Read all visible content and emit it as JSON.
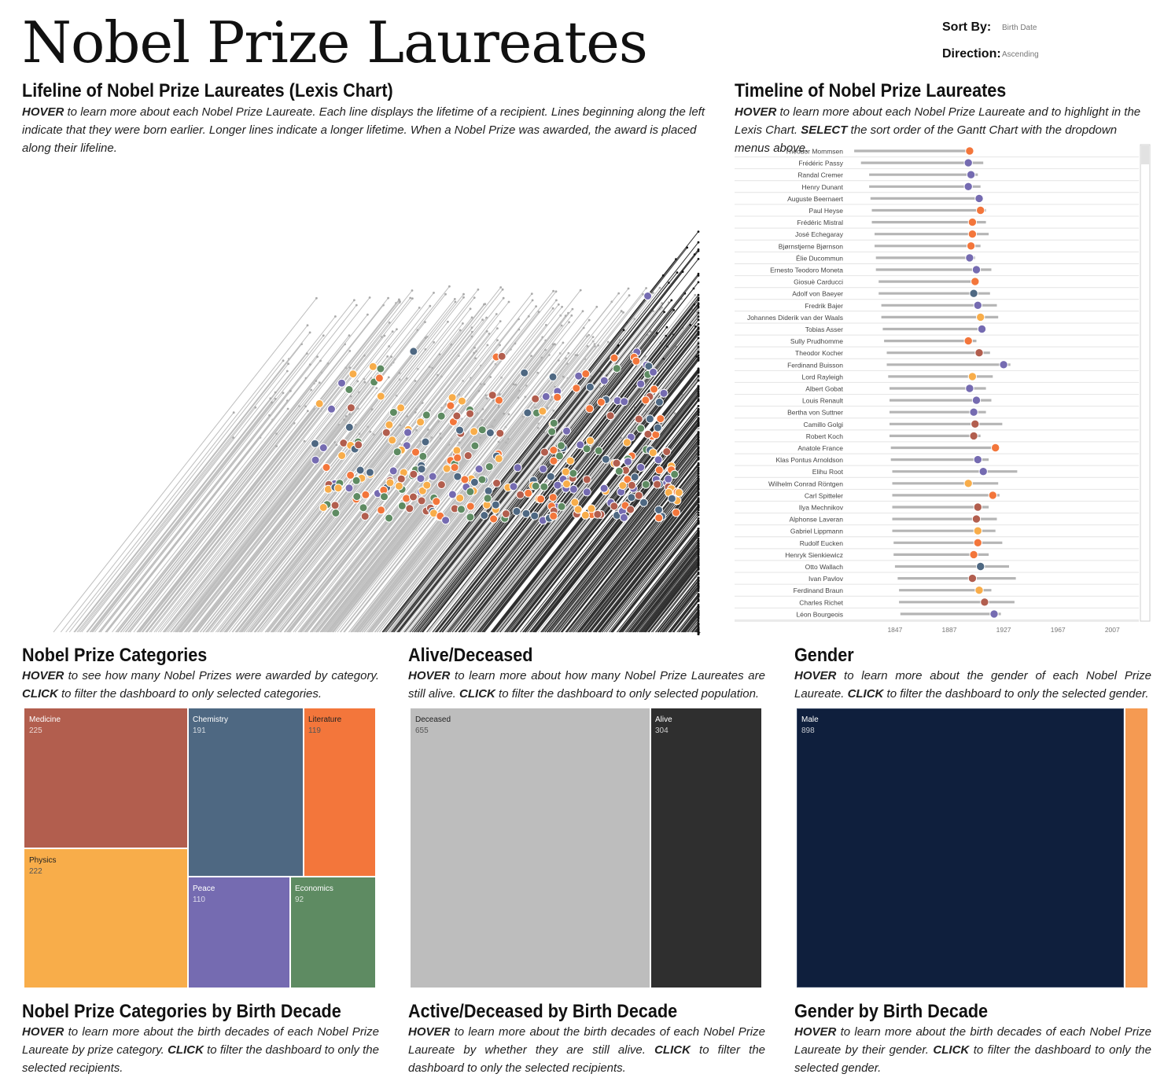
{
  "page": {
    "title": "Nobel Prize Laureates",
    "sort_by_label": "Sort By:",
    "sort_by_value": "Birth Date",
    "direction_label": "Direction:",
    "direction_value": "Ascending"
  },
  "colors": {
    "Medicine": "#b25e4e",
    "Chemistry": "#4e6882",
    "Literature": "#f3763b",
    "Physics": "#f8ad4a",
    "Peace": "#756bb1",
    "Economics": "#5e8b62",
    "deceased_line": "#bdbdbd",
    "alive_line": "#2f2f2f",
    "male": "#0f1f3d",
    "female": "#f59a52"
  },
  "sections": {
    "lexis": {
      "title": "Lifeline of Nobel Prize Laureates (Lexis Chart)",
      "hover": "HOVER",
      "desc": " to learn more about each Nobel Prize Laureate. Each line displays the lifetime of a recipient. Lines beginning along the left indicate that they were born earlier. Longer lines indicate a longer lifetime. When a Nobel Prize was awarded, the award is placed along their lifeline."
    },
    "timeline": {
      "title": "Timeline of Nobel Prize Laureates",
      "hover": "HOVER",
      "desc1": " to learn more about each Nobel Prize Laureate and to highlight in the Lexis Chart. ",
      "select": "SELECT",
      "desc2": " the sort order of the Gantt Chart with the dropdown menus above."
    },
    "categories": {
      "title": "Nobel Prize Categories",
      "hover": "HOVER",
      "desc1": " to see how many Nobel Prizes were awarded by category. ",
      "click": "CLICK",
      "desc2": " to filter the dashboard to only selected categories."
    },
    "alive": {
      "title": "Alive/Deceased",
      "hover": "HOVER",
      "desc1": " to learn more about how many Nobel Prize Laureates are still alive. ",
      "click": "CLICK",
      "desc2": " to filter the dashboard to only selected population."
    },
    "gender": {
      "title": "Gender",
      "hover": "HOVER",
      "desc1": " to learn more about the gender of each Nobel Prize Laureate. ",
      "click": "CLICK",
      "desc2": " to filter the dashboard to only the selected gender."
    },
    "cat_decade": {
      "title": "Nobel Prize Categories by Birth Decade",
      "hover": "HOVER",
      "desc1": " to learn more about the birth decades of each Nobel Prize Laureate by prize category. ",
      "click": "CLICK",
      "desc2": " to filter the dashboard to only the selected recipients."
    },
    "alive_decade": {
      "title": "Active/Deceased by Birth Decade",
      "hover": "HOVER",
      "desc1": " to learn more about the birth decades of each Nobel Prize Laureate by whether they are still alive. ",
      "click": "CLICK",
      "desc2": " to filter the dashboard to only the selected recipients."
    },
    "gender_decade": {
      "title": "Gender by Birth Decade",
      "hover": "HOVER",
      "desc1": " to learn more about the birth decades of each Nobel Prize Laureate by their gender. ",
      "click": "CLICK",
      "desc2": " to filter the dashboard to only the selected gender."
    }
  },
  "chart_data": [
    {
      "id": "lexis",
      "type": "scatter",
      "title": "Lifeline of Nobel Prize Laureates (Lexis Chart)",
      "series": [
        {
          "name": "Medicine"
        },
        {
          "name": "Chemistry"
        },
        {
          "name": "Literature"
        },
        {
          "name": "Physics"
        },
        {
          "name": "Peace"
        },
        {
          "name": "Economics"
        }
      ],
      "grid": false
    },
    {
      "id": "timeline",
      "type": "bar",
      "title": "Timeline of Nobel Prize Laureates",
      "x_ticks": [
        1847,
        1887,
        1927,
        1967,
        2007
      ],
      "xlim": [
        1810,
        2030
      ],
      "rows": [
        {
          "name": "Theodor Mommsen",
          "birth": 1817,
          "death": 1903,
          "award": 1902,
          "category": "Literature"
        },
        {
          "name": "Frédéric Passy",
          "birth": 1822,
          "death": 1912,
          "award": 1901,
          "category": "Peace"
        },
        {
          "name": "Randal Cremer",
          "birth": 1828,
          "death": 1908,
          "award": 1903,
          "category": "Peace"
        },
        {
          "name": "Henry Dunant",
          "birth": 1828,
          "death": 1910,
          "award": 1901,
          "category": "Peace"
        },
        {
          "name": "Auguste Beernaert",
          "birth": 1829,
          "death": 1912,
          "award": 1909,
          "category": "Peace"
        },
        {
          "name": "Paul Heyse",
          "birth": 1830,
          "death": 1914,
          "award": 1910,
          "category": "Literature"
        },
        {
          "name": "Frédéric Mistral",
          "birth": 1830,
          "death": 1914,
          "award": 1904,
          "category": "Literature"
        },
        {
          "name": "José Echegaray",
          "birth": 1832,
          "death": 1916,
          "award": 1904,
          "category": "Literature"
        },
        {
          "name": "Bjørnstjerne Bjørnson",
          "birth": 1832,
          "death": 1910,
          "award": 1903,
          "category": "Literature"
        },
        {
          "name": "Élie Ducommun",
          "birth": 1833,
          "death": 1906,
          "award": 1902,
          "category": "Peace"
        },
        {
          "name": "Ernesto Teodoro Moneta",
          "birth": 1833,
          "death": 1918,
          "award": 1907,
          "category": "Peace"
        },
        {
          "name": "Giosuè Carducci",
          "birth": 1835,
          "death": 1907,
          "award": 1906,
          "category": "Literature"
        },
        {
          "name": "Adolf von Baeyer",
          "birth": 1835,
          "death": 1917,
          "award": 1905,
          "category": "Chemistry"
        },
        {
          "name": "Fredrik Bajer",
          "birth": 1837,
          "death": 1922,
          "award": 1908,
          "category": "Peace"
        },
        {
          "name": "Johannes Diderik van der Waals",
          "birth": 1837,
          "death": 1923,
          "award": 1910,
          "category": "Physics"
        },
        {
          "name": "Tobias Asser",
          "birth": 1838,
          "death": 1913,
          "award": 1911,
          "category": "Peace"
        },
        {
          "name": "Sully Prudhomme",
          "birth": 1839,
          "death": 1907,
          "award": 1901,
          "category": "Literature"
        },
        {
          "name": "Theodor Kocher",
          "birth": 1841,
          "death": 1917,
          "award": 1909,
          "category": "Medicine"
        },
        {
          "name": "Ferdinand Buisson",
          "birth": 1841,
          "death": 1932,
          "award": 1927,
          "category": "Peace"
        },
        {
          "name": "Lord Rayleigh",
          "birth": 1842,
          "death": 1919,
          "award": 1904,
          "category": "Physics"
        },
        {
          "name": "Albert Gobat",
          "birth": 1843,
          "death": 1914,
          "award": 1902,
          "category": "Peace"
        },
        {
          "name": "Louis Renault",
          "birth": 1843,
          "death": 1918,
          "award": 1907,
          "category": "Peace"
        },
        {
          "name": "Bertha von Suttner",
          "birth": 1843,
          "death": 1914,
          "award": 1905,
          "category": "Peace"
        },
        {
          "name": "Camillo Golgi",
          "birth": 1843,
          "death": 1926,
          "award": 1906,
          "category": "Medicine"
        },
        {
          "name": "Robert Koch",
          "birth": 1843,
          "death": 1910,
          "award": 1905,
          "category": "Medicine"
        },
        {
          "name": "Anatole France",
          "birth": 1844,
          "death": 1924,
          "award": 1921,
          "category": "Literature"
        },
        {
          "name": "Klas Pontus Arnoldson",
          "birth": 1844,
          "death": 1916,
          "award": 1908,
          "category": "Peace"
        },
        {
          "name": "Elihu Root",
          "birth": 1845,
          "death": 1937,
          "award": 1912,
          "category": "Peace"
        },
        {
          "name": "Wilhelm Conrad Röntgen",
          "birth": 1845,
          "death": 1923,
          "award": 1901,
          "category": "Physics"
        },
        {
          "name": "Carl Spitteler",
          "birth": 1845,
          "death": 1924,
          "award": 1919,
          "category": "Literature"
        },
        {
          "name": "Ilya Mechnikov",
          "birth": 1845,
          "death": 1916,
          "award": 1908,
          "category": "Medicine"
        },
        {
          "name": "Alphonse Laveran",
          "birth": 1845,
          "death": 1922,
          "award": 1907,
          "category": "Medicine"
        },
        {
          "name": "Gabriel Lippmann",
          "birth": 1845,
          "death": 1921,
          "award": 1908,
          "category": "Physics"
        },
        {
          "name": "Rudolf Eucken",
          "birth": 1846,
          "death": 1926,
          "award": 1908,
          "category": "Literature"
        },
        {
          "name": "Henryk Sienkiewicz",
          "birth": 1846,
          "death": 1916,
          "award": 1905,
          "category": "Literature"
        },
        {
          "name": "Otto Wallach",
          "birth": 1847,
          "death": 1931,
          "award": 1910,
          "category": "Chemistry"
        },
        {
          "name": "Ivan Pavlov",
          "birth": 1849,
          "death": 1936,
          "award": 1904,
          "category": "Medicine"
        },
        {
          "name": "Ferdinand Braun",
          "birth": 1850,
          "death": 1918,
          "award": 1909,
          "category": "Physics"
        },
        {
          "name": "Charles Richet",
          "birth": 1850,
          "death": 1935,
          "award": 1913,
          "category": "Medicine"
        },
        {
          "name": "Léon Bourgeois",
          "birth": 1851,
          "death": 1925,
          "award": 1920,
          "category": "Peace"
        }
      ]
    },
    {
      "id": "categories",
      "type": "treemap",
      "title": "Nobel Prize Categories",
      "categories": [
        "Medicine",
        "Physics",
        "Chemistry",
        "Literature",
        "Peace",
        "Economics"
      ],
      "values": [
        225,
        222,
        191,
        119,
        110,
        92
      ]
    },
    {
      "id": "alive",
      "type": "treemap",
      "title": "Alive/Deceased",
      "categories": [
        "Deceased",
        "Alive"
      ],
      "values": [
        655,
        304
      ]
    },
    {
      "id": "gender",
      "type": "treemap",
      "title": "Gender",
      "categories": [
        "Male",
        ""
      ],
      "values": [
        898,
        null
      ]
    }
  ]
}
